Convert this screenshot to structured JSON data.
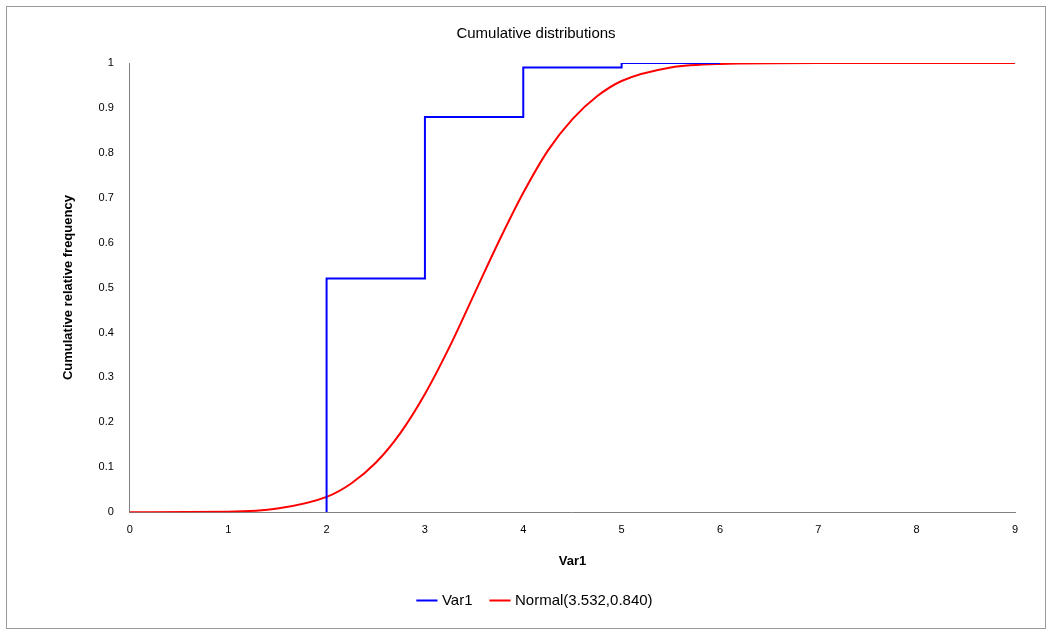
{
  "chart_data": {
    "type": "line",
    "title": "Cumulative distributions",
    "x_label": "Var1",
    "y_label": "Cumulative relative frequency",
    "xlim": [
      0,
      9
    ],
    "xticks": [
      0,
      1,
      2,
      3,
      4,
      5,
      6,
      7,
      8,
      9
    ],
    "ylim": [
      0,
      1
    ],
    "yticks": [
      0,
      0.1,
      0.2,
      0.3,
      0.4,
      0.5,
      0.6,
      0.7,
      0.8,
      0.9,
      1
    ],
    "grid": false,
    "legend": "bottom",
    "series": [
      {
        "name": "Var1",
        "color": "#0000ff",
        "line_style": "step",
        "x": [
          2,
          2,
          3,
          4,
          5,
          6
        ],
        "values": [
          0,
          0.07,
          0.52,
          0.88,
          0.99,
          1
        ]
      },
      {
        "name": "Normal(3.532,0.840)",
        "color": "#ff0000",
        "line_style": "solid",
        "x": [
          0,
          1,
          1.5,
          2,
          2.25,
          2.5,
          2.75,
          3,
          3.25,
          3.5,
          3.75,
          4,
          4.25,
          4.5,
          4.75,
          5,
          5.5,
          6,
          7,
          9
        ],
        "values": [
          0,
          0.001,
          0.008,
          0.034,
          0.064,
          0.11,
          0.176,
          0.263,
          0.368,
          0.485,
          0.602,
          0.711,
          0.805,
          0.875,
          0.926,
          0.96,
          0.99,
          0.998,
          1,
          1
        ]
      }
    ]
  }
}
